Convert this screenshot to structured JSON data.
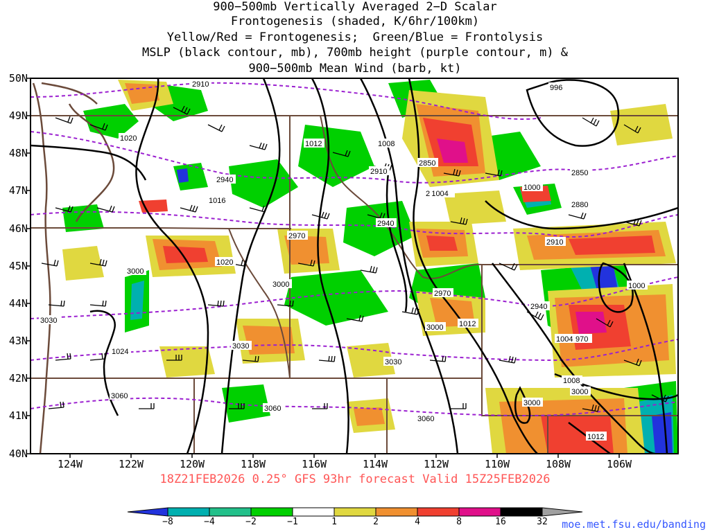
{
  "title": {
    "lines": [
      "900−500mb Vertically Averaged 2−D Scalar",
      "Frontogenesis (shaded, K/6hr/100km)",
      "Yellow/Red = Frontogenesis;  Green/Blue = Frontolysis",
      "MSLP (black contour, mb), 700mb height (purple contour, m) &",
      "900−500mb Mean Wind (barb, kt)"
    ]
  },
  "latitude_labels": [
    "50N",
    "49N",
    "48N",
    "47N",
    "46N",
    "45N",
    "44N",
    "43N",
    "42N",
    "41N",
    "40N"
  ],
  "longitude_labels": [
    "124W",
    "122W",
    "120W",
    "118W",
    "116W",
    "114W",
    "112W",
    "110W",
    "108W",
    "106W"
  ],
  "forecast_text": "18Z21FEB2026 0.25° GFS 93hr forecast Valid 15Z25FEB2026",
  "credit": "moe.met.fsu.edu/banding",
  "colorbar": {
    "labels": [
      "−8",
      "−4",
      "−2",
      "−1",
      "1",
      "2",
      "4",
      "8",
      "16",
      "32"
    ],
    "colors": [
      "#2233dd",
      "#00b0b0",
      "#22c08a",
      "#00d000",
      "#ffffff",
      "#e0d840",
      "#f09030",
      "#f04030",
      "#e0108a",
      "#000000",
      "#a0a0a0"
    ]
  },
  "mslp_labels": [
    "996",
    "1020",
    "1012",
    "1008",
    "1000",
    "1016",
    "1020",
    "1000",
    "1000",
    "1012",
    "1004",
    "970",
    "1008",
    "1012",
    "1024",
    "1000"
  ],
  "height_labels": [
    "2910",
    "2940",
    "2910",
    "2850",
    "2850",
    "2880",
    "2940",
    "2970",
    "2910",
    "3000",
    "3000",
    "2970",
    "2940",
    "3030",
    "3000",
    "3030",
    "3030",
    "3060",
    "3060",
    "3060",
    "3000",
    "3000"
  ],
  "mixed_label": "2 1004",
  "colors": {
    "mslp": "#000000",
    "height": "#9b1fd0",
    "borders": "#6b4a3a",
    "forecast": "#ff5555",
    "credit": "#3355ff"
  }
}
